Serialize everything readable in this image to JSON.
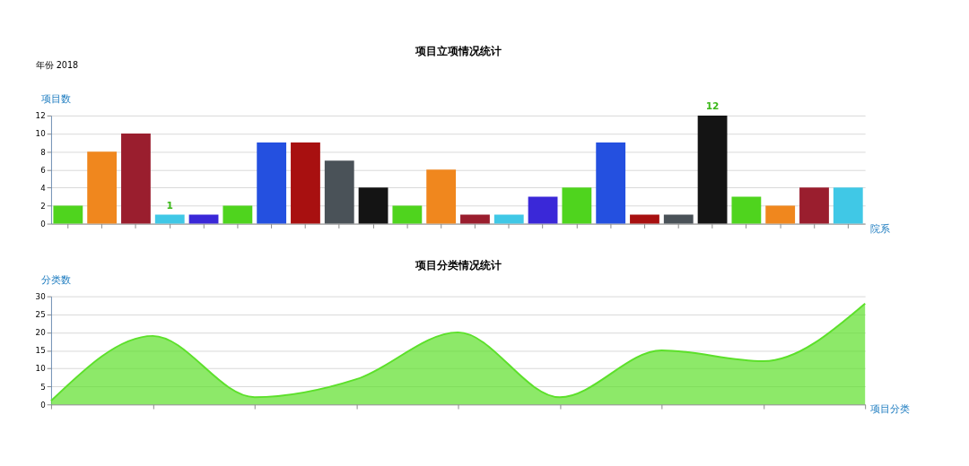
{
  "chart_data": [
    {
      "type": "bar",
      "title": "项目立项情况统计",
      "ylabel": "项目数",
      "xlabel": "院系",
      "annotations": [
        "年份 2018"
      ],
      "categories": [
        null,
        null,
        null,
        null,
        null,
        null,
        null,
        null,
        null,
        null,
        null,
        null,
        null,
        null,
        null,
        null,
        null,
        null,
        null,
        null,
        null,
        null,
        null,
        null
      ],
      "values": [
        2,
        8,
        10,
        1,
        1,
        2,
        9,
        9,
        7,
        4,
        2,
        6,
        1,
        1,
        3,
        4,
        9,
        1,
        1,
        12,
        3,
        2,
        4,
        4
      ],
      "colors": [
        "#4fd41e",
        "#f0871e",
        "#9a1e2e",
        "#40c8e6",
        "#3a28d8",
        "#4fd41e",
        "#2450e0",
        "#a81010",
        "#4a5258",
        "#141414",
        "#4fd41e",
        "#f0871e",
        "#9a1e2e",
        "#40c8e6",
        "#3a28d8",
        "#4fd41e",
        "#2450e0",
        "#a81010",
        "#4a5258",
        "#141414",
        "#4fd41e",
        "#f0871e",
        "#9a1e2e",
        "#40c8e6"
      ],
      "value_labels": [
        null,
        null,
        null,
        "1",
        null,
        null,
        null,
        null,
        null,
        null,
        null,
        null,
        null,
        null,
        null,
        null,
        null,
        null,
        null,
        "12",
        null,
        null,
        null,
        null
      ],
      "ylim": [
        0,
        12
      ],
      "yticks": [
        0,
        2,
        4,
        6,
        8,
        10,
        12
      ],
      "grid": "y"
    },
    {
      "type": "area",
      "title": "项目分类情况统计",
      "ylabel": "分类数",
      "xlabel": "项目分类",
      "categories": [
        null,
        null,
        null,
        null,
        null,
        null,
        null,
        null,
        null
      ],
      "series": [
        {
          "color": "#5ce02a",
          "values": [
            1,
            19,
            2,
            7,
            20,
            2,
            15,
            12,
            28
          ]
        }
      ],
      "ylim": [
        0,
        30
      ],
      "yticks": [
        0,
        5,
        10,
        15,
        20,
        25,
        30
      ],
      "grid": "y"
    }
  ]
}
